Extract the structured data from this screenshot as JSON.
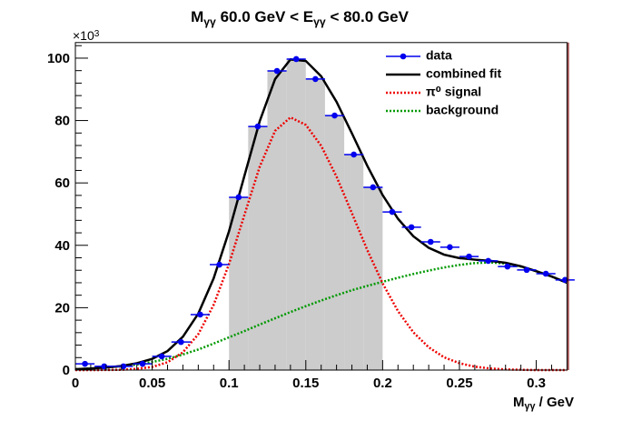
{
  "chart_data": {
    "type": "histogram-fit",
    "title": [
      {
        "text": "M"
      },
      {
        "text": "γγ",
        "sub": true
      },
      {
        "text": " 60.0 GeV < E"
      },
      {
        "text": "γγ",
        "sub": true
      },
      {
        "text": " < 80.0 GeV"
      }
    ],
    "x_label": [
      {
        "text": "M"
      },
      {
        "text": "γγ",
        "sub": true
      },
      {
        "text": " / GeV"
      }
    ],
    "y_multiplier": [
      {
        "text": "×10"
      },
      {
        "text": "3",
        "sup": true
      }
    ],
    "xlim": [
      0,
      0.32
    ],
    "ylim": [
      0,
      105
    ],
    "xticks": [
      0,
      0.05,
      0.1,
      0.15,
      0.2,
      0.25,
      0.3
    ],
    "yticks": [
      0,
      20,
      40,
      60,
      80,
      100
    ],
    "xminorticks": [
      0.01,
      0.02,
      0.03,
      0.04,
      0.06,
      0.07,
      0.08,
      0.09,
      0.11,
      0.12,
      0.13,
      0.14,
      0.16,
      0.17,
      0.18,
      0.19,
      0.21,
      0.22,
      0.23,
      0.24,
      0.26,
      0.27,
      0.28,
      0.29,
      0.31
    ],
    "yminorticks": [
      4,
      8,
      12,
      16,
      24,
      28,
      32,
      36,
      44,
      48,
      52,
      56,
      64,
      68,
      72,
      76,
      84,
      88,
      92,
      96,
      104
    ],
    "shaded_range": [
      0.1,
      0.2
    ],
    "shade_color": "#cccccc",
    "legend": "top-right",
    "series": [
      {
        "name": "data",
        "style": "points",
        "color": "#0000ee",
        "xerr": 0.00625,
        "x": [
          0.00625,
          0.01875,
          0.03125,
          0.04375,
          0.05625,
          0.06875,
          0.08125,
          0.09375,
          0.10625,
          0.11875,
          0.13125,
          0.14375,
          0.15625,
          0.16875,
          0.18125,
          0.19375,
          0.20625,
          0.21875,
          0.23125,
          0.24375,
          0.25625,
          0.26875,
          0.28125,
          0.29375,
          0.30625,
          0.31875
        ],
        "values": [
          2.0,
          1.2,
          1.2,
          2.0,
          4.4,
          9.0,
          17.8,
          33.8,
          55.4,
          78.1,
          95.9,
          99.7,
          93.3,
          81.6,
          69.1,
          58.6,
          50.7,
          45.8,
          41.1,
          39.4,
          36.4,
          35.0,
          33.2,
          32.1,
          30.9,
          28.9
        ]
      },
      {
        "name": "combined fit",
        "style": "solid",
        "color": "#000000",
        "x": [
          0,
          0.01,
          0.02,
          0.03,
          0.04,
          0.05,
          0.06,
          0.07,
          0.08,
          0.09,
          0.1,
          0.11,
          0.12,
          0.13,
          0.14,
          0.15,
          0.16,
          0.17,
          0.18,
          0.19,
          0.2,
          0.21,
          0.22,
          0.23,
          0.24,
          0.25,
          0.26,
          0.27,
          0.28,
          0.29,
          0.3,
          0.31,
          0.32
        ],
        "values": [
          0.3,
          0.5,
          0.83,
          1.3,
          2.2,
          3.6,
          6.1,
          10.7,
          18.1,
          29.4,
          44.5,
          62.2,
          79.8,
          93.3,
          99.6,
          99.1,
          94.2,
          86.0,
          75.9,
          65.5,
          56.1,
          48.5,
          42.9,
          39.2,
          37.0,
          35.9,
          35.4,
          35.0,
          34.4,
          33.3,
          31.7,
          30,
          28
        ]
      },
      {
        "name": "π⁰ signal",
        "style": "dotted",
        "color": "#ee0000",
        "x": [
          0,
          0.01,
          0.02,
          0.03,
          0.04,
          0.05,
          0.06,
          0.07,
          0.08,
          0.09,
          0.1,
          0.11,
          0.12,
          0.13,
          0.14,
          0.15,
          0.16,
          0.17,
          0.18,
          0.19,
          0.2,
          0.21,
          0.22,
          0.23,
          0.24,
          0.25,
          0.26,
          0.27,
          0.28,
          0.29,
          0.3,
          0.31,
          0.32
        ],
        "values": [
          0,
          0,
          0.03,
          0.1,
          0.4,
          1.0,
          2.5,
          5.7,
          11.5,
          20.9,
          34.0,
          49.7,
          65.2,
          76.7,
          81,
          78.6,
          71.9,
          62.0,
          50.3,
          38.5,
          27.8,
          18.9,
          12.1,
          7.3,
          4.1,
          2.2,
          1.1,
          0.5,
          0.2,
          0.1,
          0,
          0,
          0
        ]
      },
      {
        "name": "background",
        "style": "dotted",
        "color": "#009900",
        "x": [
          0,
          0.01,
          0.02,
          0.03,
          0.04,
          0.05,
          0.06,
          0.07,
          0.08,
          0.09,
          0.1,
          0.11,
          0.12,
          0.13,
          0.14,
          0.15,
          0.16,
          0.17,
          0.18,
          0.19,
          0.2,
          0.21,
          0.22,
          0.23,
          0.24,
          0.25,
          0.26,
          0.27,
          0.28,
          0.29,
          0.3,
          0.31,
          0.32
        ],
        "values": [
          0.3,
          0.5,
          0.8,
          1.2,
          1.8,
          2.6,
          3.6,
          5,
          6.6,
          8.5,
          10.5,
          12.5,
          14.6,
          16.6,
          18.6,
          20.5,
          22.3,
          24,
          25.6,
          27,
          28.3,
          29.6,
          30.8,
          31.9,
          32.9,
          33.7,
          34.3,
          34.5,
          34.2,
          33.2,
          31.7,
          30,
          28
        ]
      }
    ]
  }
}
